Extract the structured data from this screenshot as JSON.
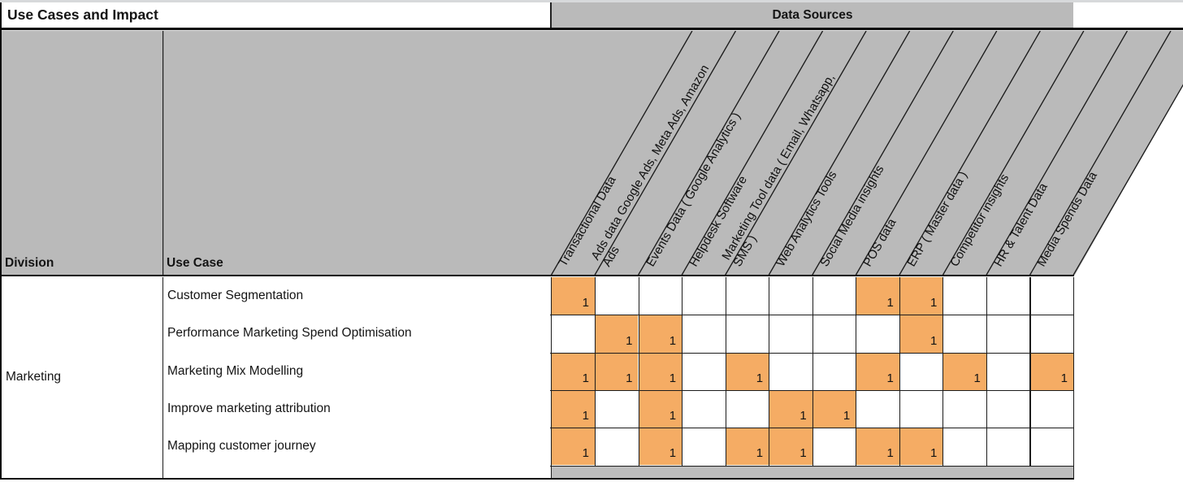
{
  "title": "Use Cases and Impact",
  "data_sources_header": "Data Sources",
  "corner_headers": {
    "division": "Division",
    "use_case": "Use Case"
  },
  "division_value": "Marketing",
  "columns": [
    {
      "line1": "Transactional Data",
      "line2": ""
    },
    {
      "line1": "Ads data Google Ads, Meta Ads, Amazon",
      "line2": "Ads"
    },
    {
      "line1": "Events Data ( Google Analytics )",
      "line2": ""
    },
    {
      "line1": "Helpdesk Software",
      "line2": ""
    },
    {
      "line1": "Marketing Tool data ( Email, Whatsapp,",
      "line2": "SMS )"
    },
    {
      "line1": "Web Analytics Tools",
      "line2": ""
    },
    {
      "line1": "Social Media insights",
      "line2": ""
    },
    {
      "line1": "POS data",
      "line2": ""
    },
    {
      "line1": "ERP ( Master data )",
      "line2": ""
    },
    {
      "line1": "Competitor insights",
      "line2": ""
    },
    {
      "line1": "HR & Talent Data",
      "line2": ""
    },
    {
      "line1": "Media Spends Data",
      "line2": ""
    }
  ],
  "rows": [
    {
      "use_case": "Customer Segmentation",
      "values": [
        1,
        0,
        0,
        0,
        0,
        0,
        0,
        1,
        1,
        0,
        0,
        0
      ]
    },
    {
      "use_case": "Performance Marketing Spend Optimisation",
      "values": [
        0,
        1,
        1,
        0,
        0,
        0,
        0,
        0,
        1,
        0,
        0,
        0
      ]
    },
    {
      "use_case": "Marketing Mix Modelling",
      "values": [
        1,
        1,
        1,
        0,
        1,
        0,
        0,
        1,
        0,
        1,
        0,
        1
      ]
    },
    {
      "use_case": "Improve marketing attribution",
      "values": [
        1,
        0,
        1,
        0,
        0,
        1,
        1,
        0,
        0,
        0,
        0,
        0
      ]
    },
    {
      "use_case": "Mapping customer journey",
      "values": [
        1,
        0,
        1,
        0,
        1,
        1,
        0,
        1,
        1,
        0,
        0,
        0
      ]
    }
  ],
  "cell_mark": "1",
  "colors": {
    "accent_orange": "#F5AC64",
    "header_gray": "#BABABA",
    "bottom_strip_gray": "#BDBDBD",
    "grid_line": "#1C1C1C"
  }
}
